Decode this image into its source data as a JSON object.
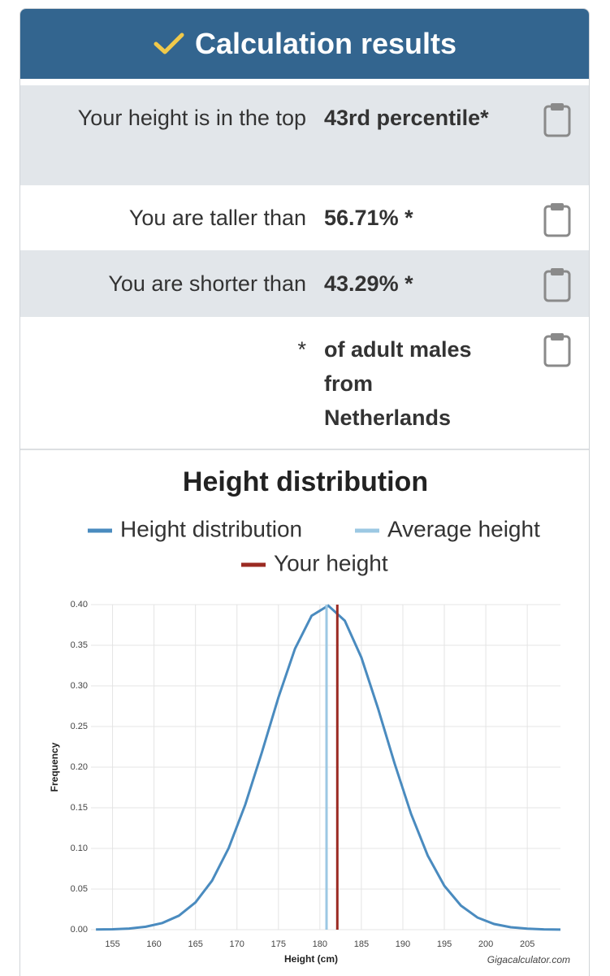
{
  "header": {
    "title": "Calculation results"
  },
  "results": {
    "rows": [
      [
        "Your height is in the top",
        "43rd percentile*"
      ],
      [
        "You are taller than",
        "56.71% *"
      ],
      [
        "You are shorter than",
        "43.29% *"
      ],
      [
        "*",
        "of adult males from Netherlands"
      ]
    ]
  },
  "chart_data": {
    "type": "line",
    "title": "Height distribution",
    "x_label": "Height (cm)",
    "y_label": "Frequency",
    "credit": "Gigacalculator.com",
    "xlim": [
      152.4,
      209
    ],
    "ylim": [
      0,
      0.4
    ],
    "xticks": [
      155,
      160,
      165,
      170,
      175,
      180,
      185,
      190,
      195,
      200,
      205
    ],
    "yticks": [
      {
        "value": 0,
        "label": "0.00"
      },
      {
        "value": 0.05,
        "label": "0.05"
      },
      {
        "value": 0.1,
        "label": "0.10"
      },
      {
        "value": 0.15,
        "label": "0.15"
      },
      {
        "value": 0.2,
        "label": "0.20"
      },
      {
        "value": 0.25,
        "label": "0.25"
      },
      {
        "value": 0.3,
        "label": "0.30"
      },
      {
        "value": 0.35,
        "label": "0.35"
      },
      {
        "value": 0.4,
        "label": "0.40"
      }
    ],
    "grid": true,
    "series": [
      {
        "name": "Height distribution",
        "color": "#4a8bbf",
        "x": [
          153,
          155,
          157,
          159,
          161,
          163,
          165,
          167,
          169,
          171,
          173,
          175,
          177,
          179,
          181,
          183,
          185,
          187,
          189,
          191,
          193,
          195,
          197,
          199,
          201,
          203,
          205,
          207,
          209
        ],
        "values": [
          0.0002,
          0.0005,
          0.0014,
          0.0036,
          0.0082,
          0.0172,
          0.0336,
          0.0603,
          0.1003,
          0.1539,
          0.2181,
          0.2858,
          0.3458,
          0.3863,
          0.3988,
          0.3802,
          0.3349,
          0.2725,
          0.2047,
          0.1422,
          0.0912,
          0.054,
          0.0296,
          0.0149,
          0.007,
          0.003,
          0.0012,
          0.0004,
          0.0001
        ]
      },
      {
        "name": "Average height",
        "color": "#9cc8e3",
        "x": [
          180.8,
          180.8
        ],
        "values": [
          0,
          0.4
        ]
      },
      {
        "name": "Your height",
        "color": "#9b2a22",
        "x": [
          182.1,
          182.1
        ],
        "values": [
          0,
          0.4
        ]
      }
    ]
  }
}
